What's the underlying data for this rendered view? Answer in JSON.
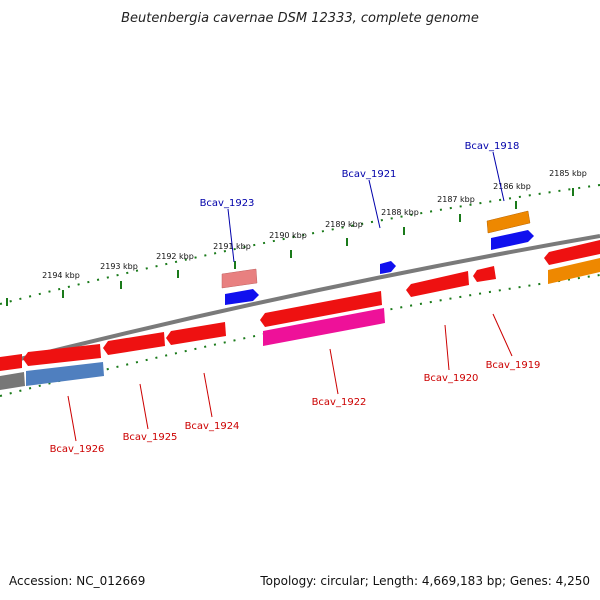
{
  "title": "Beutenbergia cavernae DSM 12333, complete genome",
  "footer": {
    "accession": "Accession: NC_012669",
    "info": "Topology: circular; Length: 4,669,183 bp; Genes: 4,250"
  },
  "scale_labels": [
    "2194 kbp",
    "2193 kbp",
    "2192 kbp",
    "2191 kbp",
    "2190 kbp",
    "2189 kbp",
    "2188 kbp",
    "2187 kbp",
    "2186 kbp",
    "2185 kbp"
  ],
  "gene_labels": {
    "above": [
      "Bcav_1923",
      "Bcav_1921",
      "Bcav_1918"
    ],
    "below": [
      "Bcav_1926",
      "Bcav_1925",
      "Bcav_1924",
      "Bcav_1922",
      "Bcav_1920",
      "Bcav_1919"
    ]
  },
  "colors": {
    "backbone": "#7a7a7a",
    "tick": "#1a7a1a",
    "gene_red": "#ee1111",
    "gene_pink": "#e88080",
    "gene_blue": "#1010ee",
    "gene_orange": "#ee8800",
    "gene_magenta": "#ee1199",
    "gene_steel": "#4f7fbf",
    "gene_grey": "#777777",
    "label_above": "#0000aa",
    "label_below": "#cc0000"
  }
}
